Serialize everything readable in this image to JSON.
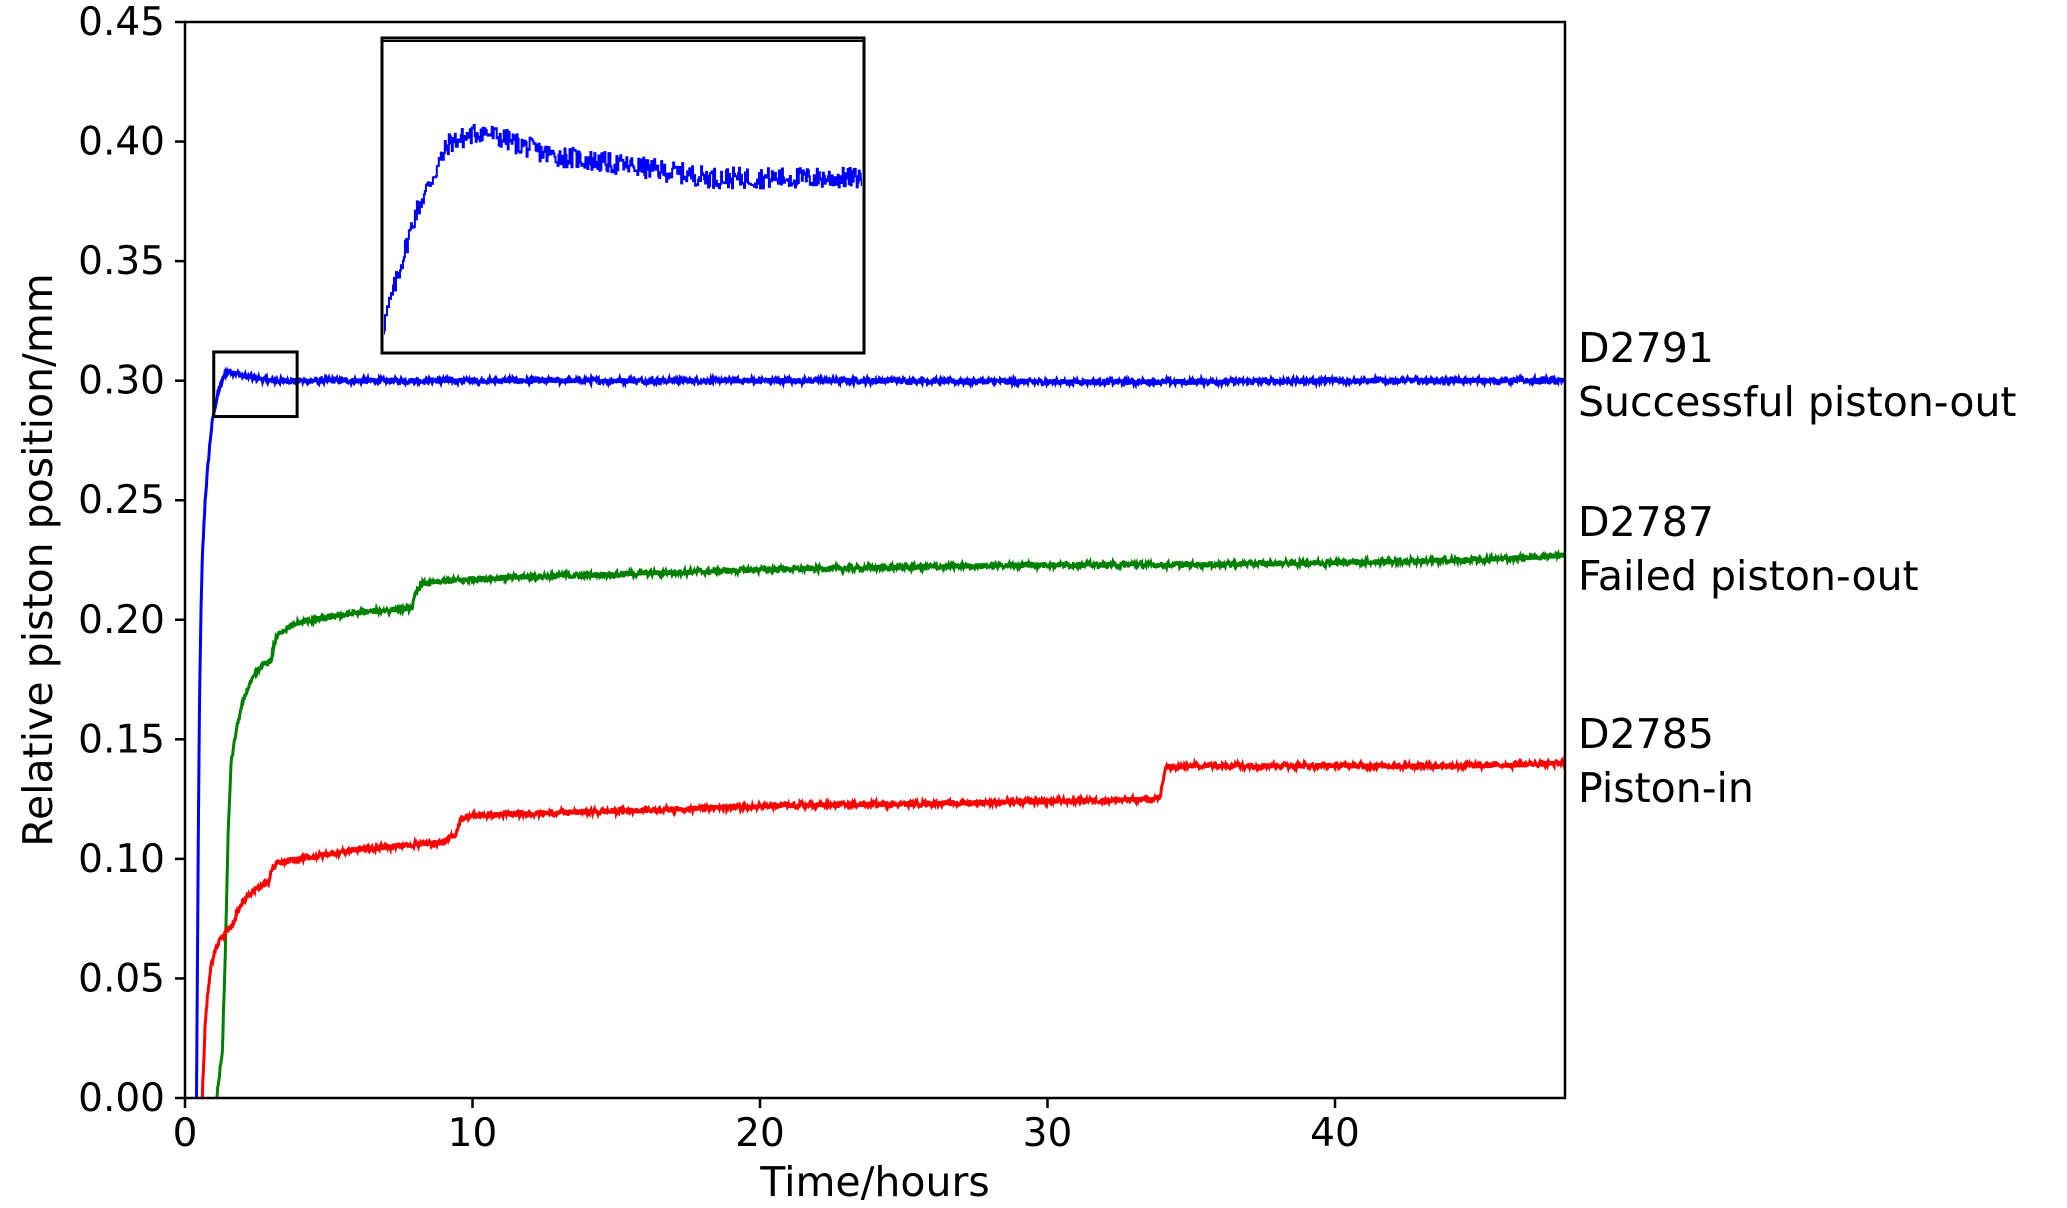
{
  "chart_data": {
    "type": "line",
    "xlabel": "Time/hours",
    "ylabel": "Relative piston position/mm",
    "xlim": [
      0,
      48
    ],
    "ylim": [
      0,
      0.45
    ],
    "xticks": [
      0,
      10,
      20,
      30,
      40
    ],
    "xtick_labels": [
      "0",
      "10",
      "20",
      "30",
      "40"
    ],
    "yticks": [
      0,
      0.05,
      0.1,
      0.15,
      0.2,
      0.25,
      0.3,
      0.35,
      0.4,
      0.45
    ],
    "ytick_labels": [
      "0.00",
      "0.05",
      "0.10",
      "0.15",
      "0.20",
      "0.25",
      "0.30",
      "0.35",
      "0.40",
      "0.45"
    ],
    "series": [
      {
        "color": "#0000ff",
        "label_lines": [
          "D2791",
          "Successful piston-out"
        ],
        "noise": 0.0012,
        "x": [
          0.4,
          0.45,
          0.5,
          0.55,
          0.6,
          0.7,
          0.8,
          0.9,
          1.0,
          1.2,
          1.4,
          1.6,
          1.8,
          2.0,
          2.5,
          3.0,
          5,
          10,
          15,
          20,
          25,
          30,
          35,
          40,
          45,
          48
        ],
        "y": [
          0.0,
          0.09,
          0.16,
          0.2,
          0.225,
          0.25,
          0.265,
          0.278,
          0.287,
          0.297,
          0.303,
          0.304,
          0.303,
          0.302,
          0.301,
          0.3,
          0.3,
          0.3,
          0.3,
          0.3,
          0.3,
          0.2995,
          0.2995,
          0.3,
          0.3,
          0.3
        ]
      },
      {
        "color": "#008000",
        "label_lines": [
          "D2787",
          "Failed piston-out"
        ],
        "noise": 0.0012,
        "x": [
          1.1,
          1.3,
          1.4,
          1.5,
          1.6,
          1.8,
          2.0,
          2.2,
          2.5,
          2.7,
          3.0,
          3.1,
          3.3,
          4,
          5,
          6,
          7,
          7.9,
          8.0,
          8.2,
          9,
          10,
          12,
          15,
          20,
          25,
          30,
          35,
          40,
          45,
          48
        ],
        "y": [
          0.0,
          0.02,
          0.06,
          0.11,
          0.14,
          0.155,
          0.165,
          0.172,
          0.178,
          0.181,
          0.183,
          0.19,
          0.195,
          0.199,
          0.201,
          0.203,
          0.204,
          0.205,
          0.21,
          0.215,
          0.216,
          0.217,
          0.218,
          0.219,
          0.221,
          0.222,
          0.223,
          0.223,
          0.224,
          0.225,
          0.227
        ]
      },
      {
        "color": "#ff0000",
        "label_lines": [
          "D2785",
          "Piston-in"
        ],
        "noise": 0.0012,
        "x": [
          0.6,
          0.65,
          0.7,
          0.8,
          0.9,
          1.0,
          1.2,
          1.4,
          1.6,
          1.9,
          2.2,
          2.5,
          2.9,
          3.0,
          3.2,
          4,
          5,
          6,
          7,
          8,
          9,
          9.4,
          9.6,
          10,
          12,
          15,
          20,
          25,
          30,
          33.9,
          34.1,
          35,
          40,
          45,
          48
        ],
        "y": [
          0.0,
          0.015,
          0.03,
          0.045,
          0.055,
          0.06,
          0.066,
          0.069,
          0.071,
          0.08,
          0.085,
          0.088,
          0.09,
          0.095,
          0.098,
          0.1,
          0.102,
          0.104,
          0.105,
          0.106,
          0.107,
          0.11,
          0.117,
          0.118,
          0.119,
          0.12,
          0.122,
          0.123,
          0.124,
          0.125,
          0.138,
          0.139,
          0.139,
          0.139,
          0.14
        ]
      }
    ],
    "inset": {
      "source_xlim": [
        1.0,
        3.9
      ],
      "source_ylim": [
        0.285,
        0.312
      ],
      "series_index": 0
    }
  }
}
